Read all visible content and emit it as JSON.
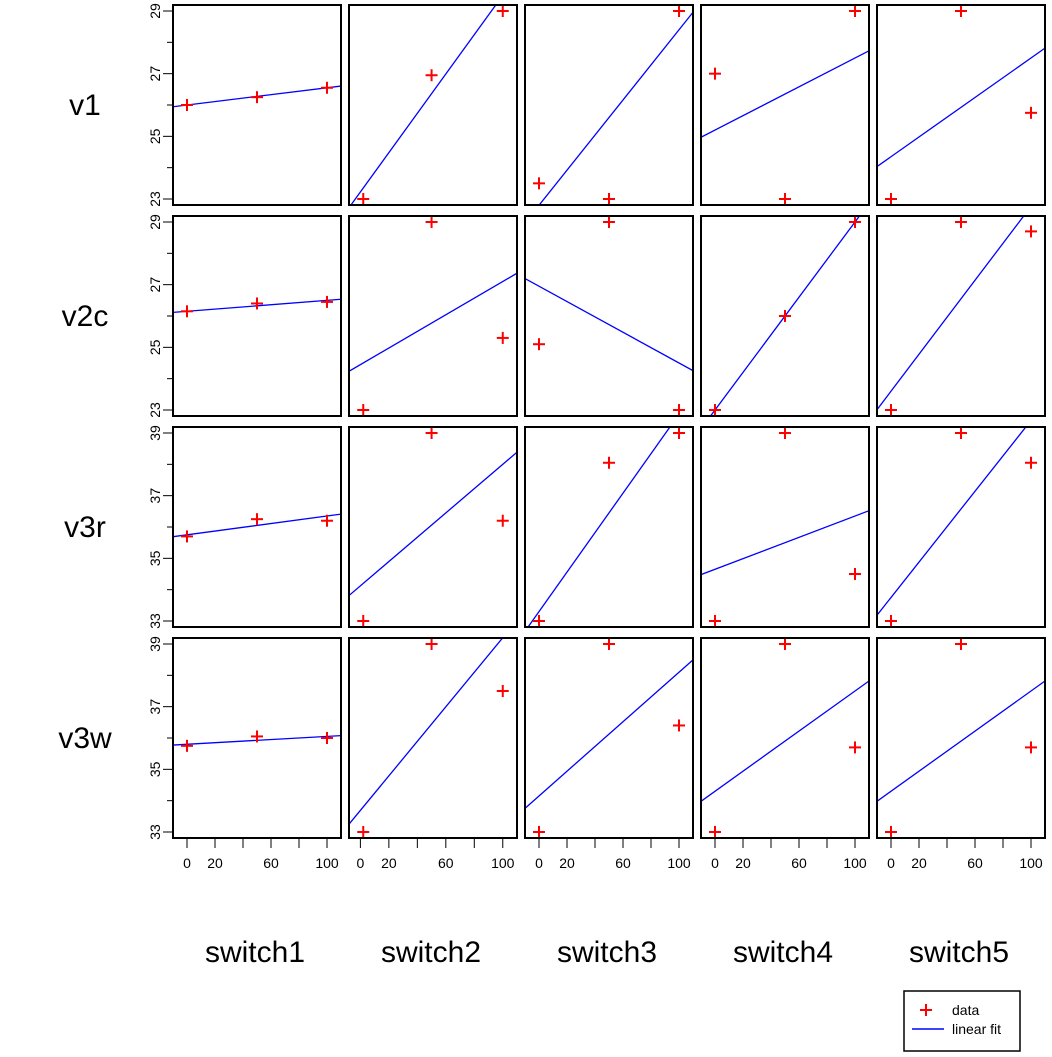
{
  "chart_data": {
    "type": "scatter",
    "layout": "matrix",
    "columns": [
      {
        "name": "switch1",
        "x": [
          0,
          50,
          100
        ],
        "xlim": [
          -10,
          110
        ],
        "ticks": [
          0,
          20,
          60,
          100
        ]
      },
      {
        "name": "switch2",
        "x": [
          2,
          50,
          100
        ],
        "xlim": [
          -8,
          110
        ],
        "ticks": [
          0,
          20,
          60,
          100
        ]
      },
      {
        "name": "switch3",
        "x": [
          0,
          50,
          100
        ],
        "xlim": [
          -10,
          110
        ],
        "ticks": [
          0,
          20,
          60,
          100
        ]
      },
      {
        "name": "switch4",
        "x": [
          0,
          50,
          100
        ],
        "xlim": [
          -10,
          110
        ],
        "ticks": [
          0,
          20,
          60,
          100
        ]
      },
      {
        "name": "switch5",
        "x": [
          0,
          50,
          100
        ],
        "xlim": [
          -10,
          110
        ],
        "ticks": [
          0,
          20,
          60,
          100
        ]
      }
    ],
    "rows": [
      {
        "name": "v1",
        "ylim": [
          23,
          29
        ],
        "yticks": [
          23,
          25,
          27,
          29
        ]
      },
      {
        "name": "v2c",
        "ylim": [
          23,
          29
        ],
        "yticks": [
          23,
          25,
          27,
          29
        ]
      },
      {
        "name": "v3r",
        "ylim": [
          33,
          39
        ],
        "yticks": [
          33,
          35,
          37,
          39
        ]
      },
      {
        "name": "v3w",
        "ylim": [
          33,
          39
        ],
        "yticks": [
          33,
          35,
          37,
          39
        ]
      }
    ],
    "panels": [
      [
        {
          "y": [
            26.0,
            26.25,
            26.55
          ],
          "fit": [
            26.0,
            26.55
          ]
        },
        {
          "y": [
            23.0,
            26.95,
            29.0
          ],
          "fit": [
            23.35,
            29.5
          ]
        },
        {
          "y": [
            23.5,
            23.0,
            29.0
          ],
          "fit": [
            22.8,
            28.4
          ]
        },
        {
          "y": [
            27.0,
            23.0,
            29.0
          ],
          "fit": [
            25.2,
            27.5
          ]
        },
        {
          "y": [
            23.0,
            29.0,
            25.75
          ],
          "fit": [
            24.35,
            27.5
          ]
        }
      ],
      [
        {
          "y": [
            26.15,
            26.4,
            26.45
          ],
          "fit": [
            26.15,
            26.5
          ]
        },
        {
          "y": [
            23.0,
            29.0,
            25.3
          ],
          "fit": [
            24.5,
            27.1
          ]
        },
        {
          "y": [
            25.1,
            29.0,
            23.0
          ],
          "fit": [
            26.95,
            24.5
          ]
        },
        {
          "y": [
            23.0,
            26.0,
            29.0
          ],
          "fit": [
            23.0,
            29.0
          ]
        },
        {
          "y": [
            23.0,
            29.0,
            28.7
          ],
          "fit": [
            23.6,
            29.5
          ]
        }
      ],
      [
        {
          "y": [
            35.7,
            36.25,
            36.2
          ],
          "fit": [
            35.75,
            36.35
          ]
        },
        {
          "y": [
            33.0,
            39.0,
            36.2
          ],
          "fit": [
            34.2,
            38.0
          ]
        },
        {
          "y": [
            33.0,
            38.05,
            39.0
          ],
          "fit": [
            33.3,
            39.6
          ]
        },
        {
          "y": [
            33.0,
            39.0,
            34.5
          ],
          "fit": [
            34.65,
            36.35
          ]
        },
        {
          "y": [
            33.0,
            39.0,
            38.05
          ],
          "fit": [
            33.75,
            39.4
          ]
        }
      ],
      [
        {
          "y": [
            35.75,
            36.05,
            36.0
          ],
          "fit": [
            35.8,
            36.05
          ]
        },
        {
          "y": [
            33.0,
            39.0,
            37.5
          ],
          "fit": [
            33.8,
            39.2
          ]
        },
        {
          "y": [
            33.0,
            39.0,
            36.4
          ],
          "fit": [
            34.15,
            38.1
          ]
        },
        {
          "y": [
            33.0,
            39.0,
            35.7
          ],
          "fit": [
            34.3,
            37.5
          ]
        },
        {
          "y": [
            33.0,
            39.0,
            35.7
          ],
          "fit": [
            34.3,
            37.5
          ]
        }
      ]
    ],
    "legend": {
      "position": "bottom-right",
      "entries": [
        "data",
        "linear fit"
      ]
    },
    "colors": {
      "points": "#ff0000",
      "fit": "#0000ff"
    },
    "grid": false
  }
}
